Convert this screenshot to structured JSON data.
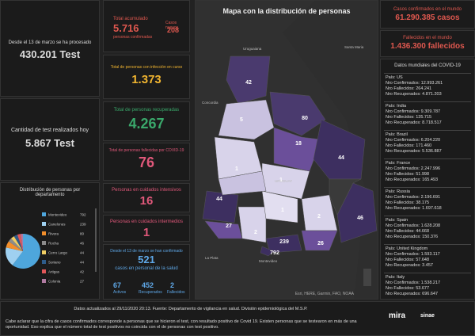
{
  "left": {
    "processed": {
      "label": "Desde el 13 de marzo se ha procesado",
      "value": "430.201 Test"
    },
    "today": {
      "label": "Cantidad de test realizados hoy",
      "value": "5.867 Test"
    },
    "distribution": {
      "title": "Distribución de personas por departamento",
      "departments": [
        {
          "name": "Montevideo",
          "value": 792,
          "color": "#4ea6dc"
        },
        {
          "name": "Canelones",
          "value": 239,
          "color": "#9fd0f0"
        },
        {
          "name": "Rivera",
          "value": 80,
          "color": "#f28e2b"
        },
        {
          "name": "Rocha",
          "value": 46,
          "color": "#8c8c8c"
        },
        {
          "name": "Cerro Largo",
          "value": 44,
          "color": "#f1ce63"
        },
        {
          "name": "Soriano",
          "value": 44,
          "color": "#2e5c8a"
        },
        {
          "name": "Artigas",
          "value": 42,
          "color": "#e15759"
        },
        {
          "name": "Colonia",
          "value": 27,
          "color": "#b07aa1"
        }
      ]
    }
  },
  "stats": {
    "accum": {
      "label": "Total acumulado",
      "value": "5.716",
      "sub": "personas confirmadas",
      "new_label": "Casos nuevos",
      "new_value": "208"
    },
    "active": {
      "label": "Total de personas con infección en curso",
      "value": "1.373"
    },
    "recovered": {
      "label": "Total de personas recuperadas",
      "value": "4.267"
    },
    "deaths": {
      "label": "Total de personas fallecidas por COVID-19",
      "value": "76"
    },
    "icu": {
      "label": "Personas en cuidados intensivos",
      "value": "16"
    },
    "intermediate": {
      "label": "Personas en cuidados intermedios",
      "value": "1"
    },
    "health": {
      "label": "Desde el 13 de marzo se han confirmado",
      "value": "521",
      "sub": "casos en personal de la salud",
      "active": "67",
      "active_label": "Activos",
      "recovered": "452",
      "recovered_label": "Recuperados",
      "deaths": "2",
      "deaths_label": "Fallecidos"
    }
  },
  "map": {
    "title": "Mapa con la distribución de personas",
    "counts": [
      "42",
      "80",
      "5",
      "18",
      "44",
      "1",
      "44",
      "1",
      "27",
      "2",
      "1",
      "2",
      "46",
      "239",
      "26",
      "792"
    ],
    "places": [
      "Uruguaiana",
      "Santa Maria",
      "Concordia",
      "URUGUAY",
      "La Plata",
      "Montevideo"
    ],
    "attribution": "Esri, HERE, Garmin, FAO, NOAA"
  },
  "world": {
    "confirmed": {
      "label": "Casos confirmados en el mundo",
      "value": "61.290.385 casos"
    },
    "deaths": {
      "label": "Fallecidos en el mundo",
      "value": "1.436.300 fallecidos"
    },
    "list": {
      "title": "Datos mundiales del COVID-19",
      "country_label": "País:",
      "confirmed_label": "Nro Confirmados:",
      "deaths_label": "Nro Fallecidos:",
      "recovered_label": "Nro Recuperados:",
      "countries": [
        {
          "name": "US",
          "confirmed": "12.993.261",
          "deaths": "264.241",
          "recovered": "4.871.203"
        },
        {
          "name": "India",
          "confirmed": "9.309.787",
          "deaths": "135.715",
          "recovered": "8.718.517"
        },
        {
          "name": "Brazil",
          "confirmed": "6.204.220",
          "deaths": "171.460",
          "recovered": "5.536.887"
        },
        {
          "name": "France",
          "confirmed": "2.247.996",
          "deaths": "51.998",
          "recovered": "165.493"
        },
        {
          "name": "Russia",
          "confirmed": "2.196.691",
          "deaths": "38.175",
          "recovered": "1.697.618"
        },
        {
          "name": "Spain",
          "confirmed": "1.628.208",
          "deaths": "44.668",
          "recovered": "150.376"
        },
        {
          "name": "United Kingdom",
          "confirmed": "1.593.117",
          "deaths": "57.648",
          "recovered": "3.457"
        },
        {
          "name": "Italy",
          "confirmed": "1.538.217",
          "deaths": "53.677",
          "recovered": "696.647"
        }
      ]
    }
  },
  "footer": {
    "updated": "Datos actualizados al 29/11/2020 20:13. Fuente: Departamento de vigilancia en salud. División epidemiológica del M.S.P.",
    "note": "Cabe aclarar que la cifra de casos confirmados corresponde a personas que se hicieron el test, con resultado positivo de Covid 19. Existen personas que se testearon en más de una oportunidad. Eso explica que el número total de test positivos no coincida con el de personas con test positivo.",
    "logos": [
      "mira",
      "sinae"
    ]
  }
}
